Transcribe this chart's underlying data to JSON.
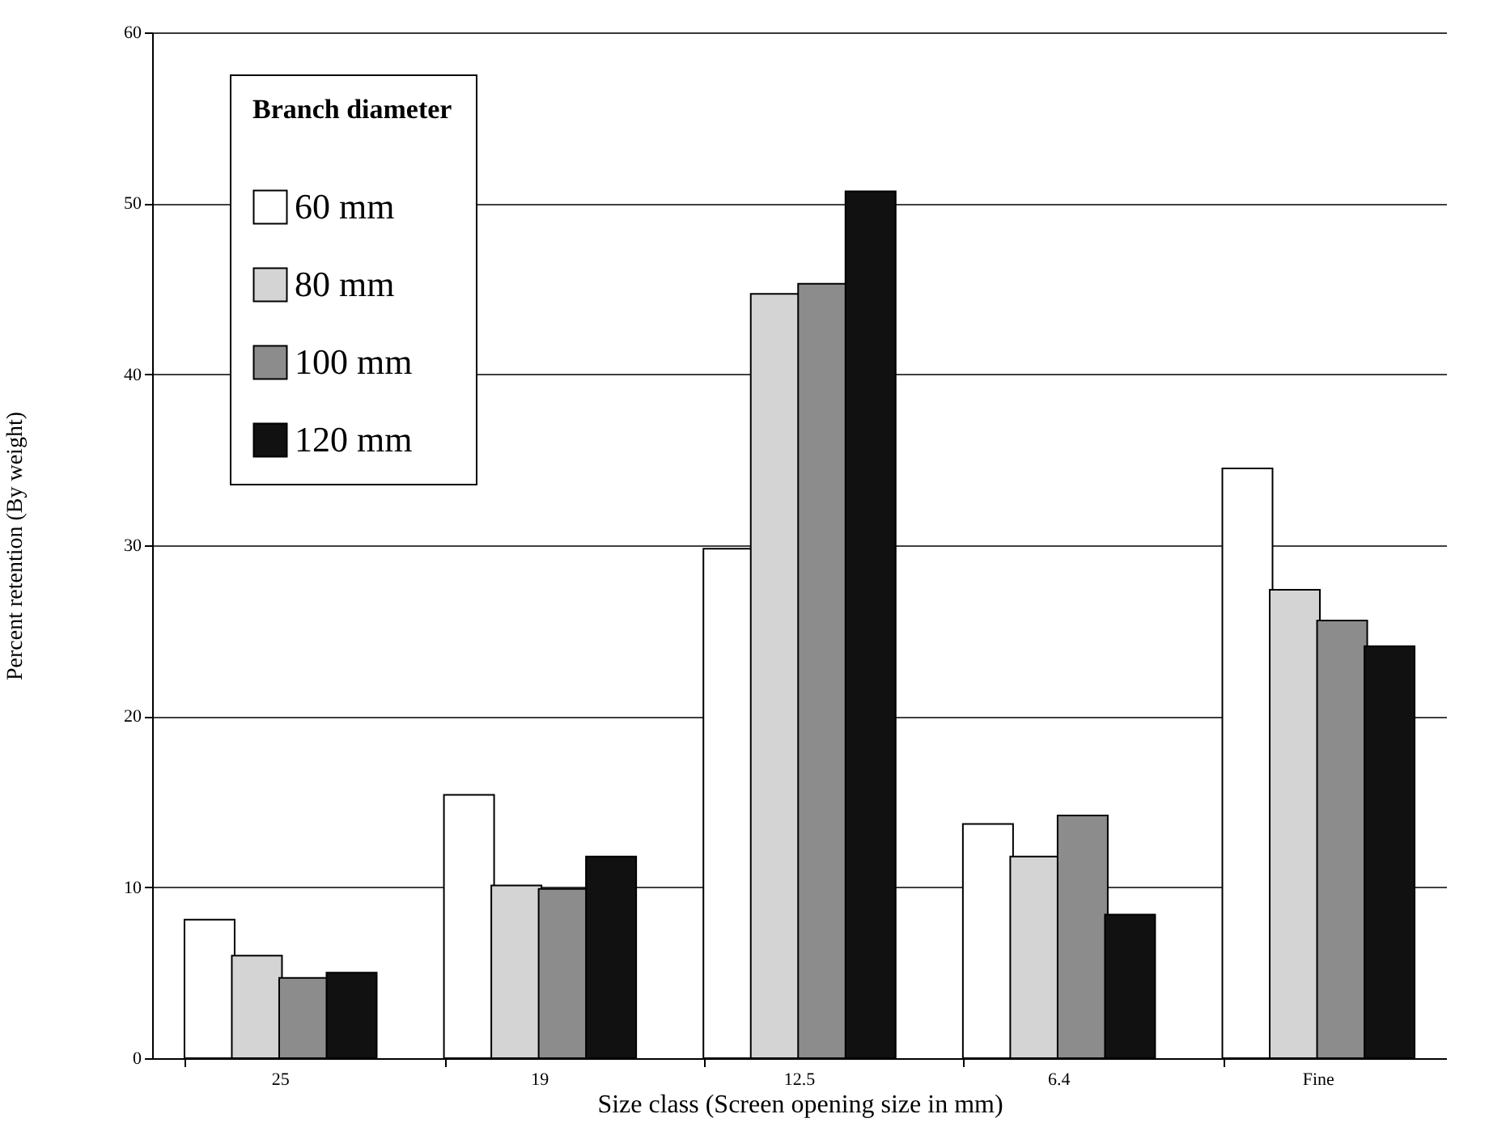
{
  "chart_data": {
    "type": "bar",
    "xlabel": "Size class (Screen opening size in mm)",
    "ylabel": "Percent retention (By weight)",
    "legend_title": "Branch diameter",
    "categories": [
      "25",
      "19",
      "12.5",
      "6.4",
      "Fine"
    ],
    "series": [
      {
        "name": "60 mm",
        "color": "#ffffff",
        "values": [
          8.1,
          15.4,
          29.8,
          13.7,
          34.5
        ]
      },
      {
        "name": "80 mm",
        "color": "#d4d4d4",
        "values": [
          6.0,
          10.1,
          44.7,
          11.8,
          27.4
        ]
      },
      {
        "name": "100 mm",
        "color": "#8c8c8c",
        "values": [
          4.7,
          9.9,
          45.3,
          14.2,
          25.6
        ]
      },
      {
        "name": "120 mm",
        "color": "#111111",
        "values": [
          5.0,
          11.8,
          50.7,
          8.4,
          24.1
        ]
      }
    ],
    "ylim": [
      0,
      60
    ],
    "yticks": [
      0,
      10,
      20,
      30,
      40,
      50,
      60
    ],
    "grid": "y",
    "legend": "top left"
  }
}
